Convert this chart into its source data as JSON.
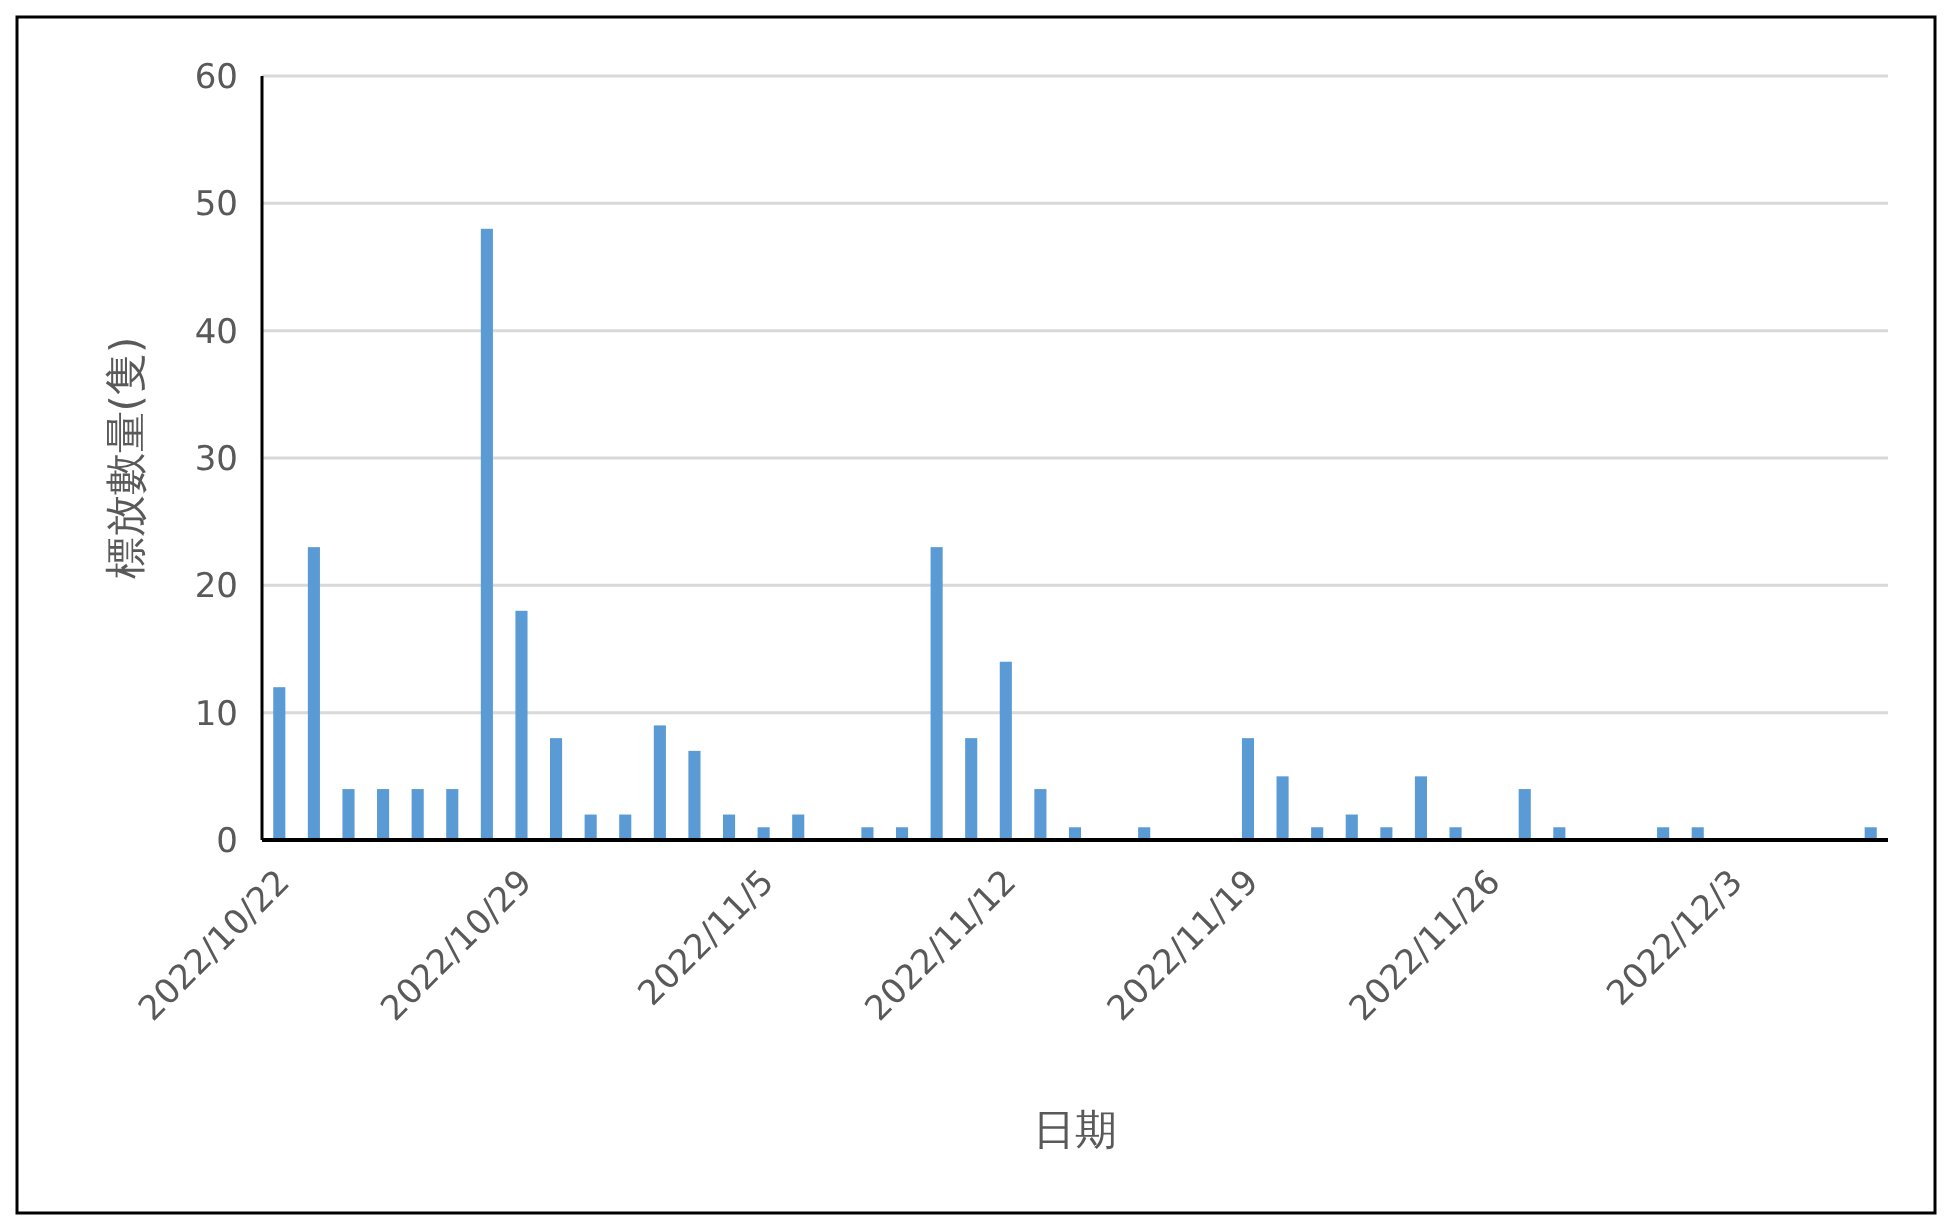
{
  "chart_data": {
    "type": "bar",
    "xlabel": "日期",
    "ylabel": "標放數量(隻)",
    "categories": [
      "2022/10/22",
      null,
      null,
      null,
      null,
      null,
      null,
      "2022/10/29",
      null,
      null,
      null,
      null,
      null,
      null,
      "2022/11/5",
      null,
      null,
      null,
      null,
      null,
      null,
      "2022/11/12",
      null,
      null,
      null,
      null,
      null,
      null,
      "2022/11/19",
      null,
      null,
      null,
      null,
      null,
      null,
      "2022/11/26",
      null,
      null,
      null,
      null,
      null,
      null,
      "2022/12/3",
      null,
      null,
      null,
      null
    ],
    "values": [
      12,
      23,
      4,
      4,
      4,
      4,
      48,
      18,
      8,
      2,
      2,
      9,
      7,
      2,
      1,
      2,
      0,
      1,
      1,
      23,
      8,
      14,
      4,
      1,
      0,
      1,
      0,
      0,
      8,
      5,
      1,
      2,
      1,
      5,
      1,
      0,
      4,
      1,
      0,
      0,
      1,
      1,
      0,
      0,
      0,
      0,
      1
    ],
    "color": "#5b9bd5",
    "ylim": [
      0,
      60
    ],
    "yticks": [
      0,
      10,
      20,
      30,
      40,
      50,
      60
    ],
    "grid": "y"
  }
}
